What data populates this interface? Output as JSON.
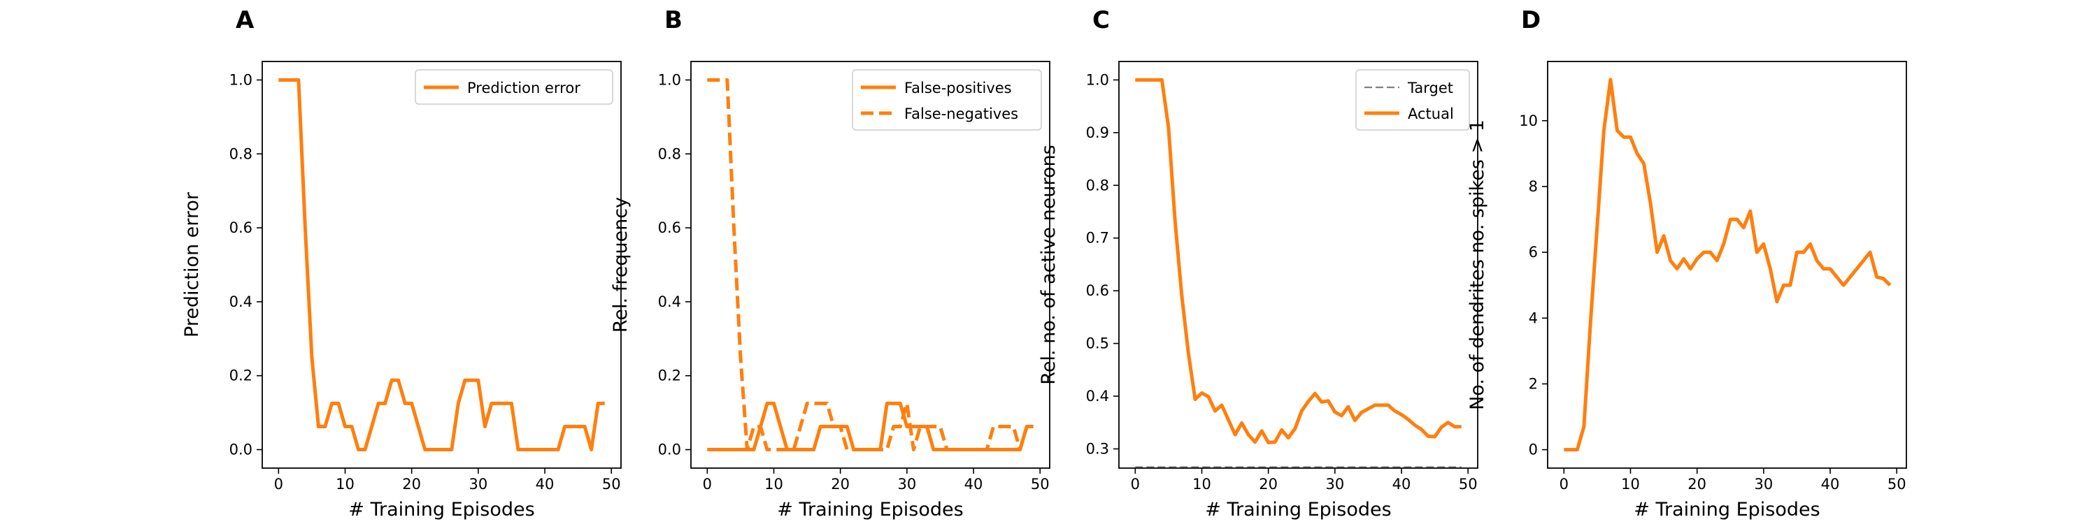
{
  "figure": {
    "background": "#ffffff",
    "series_color": "#ff7f0e",
    "target_color": "#808080"
  },
  "chart_data": [
    {
      "panel_label": "A",
      "type": "line",
      "xlabel": "# Training Episodes",
      "ylabel": "Prediction error",
      "xlim": [
        -2.45,
        51.45
      ],
      "ylim": [
        -0.05,
        1.05
      ],
      "xticks": [
        0,
        10,
        20,
        30,
        40,
        50
      ],
      "yticks": [
        0.0,
        0.2,
        0.4,
        0.6,
        0.8,
        1.0
      ],
      "ytick_labels": [
        "0.0",
        "0.2",
        "0.4",
        "0.6",
        "0.8",
        "1.0"
      ],
      "legend": {
        "position": "upper right"
      },
      "series": [
        {
          "name": "Prediction error",
          "style": "solid",
          "color": "#ff7f0e",
          "x": [
            0,
            1,
            2,
            3,
            4,
            5,
            6,
            7,
            8,
            9,
            10,
            11,
            12,
            13,
            14,
            15,
            16,
            17,
            18,
            19,
            20,
            21,
            22,
            23,
            24,
            25,
            26,
            27,
            28,
            29,
            30,
            31,
            32,
            33,
            34,
            35,
            36,
            37,
            38,
            39,
            40,
            41,
            42,
            43,
            44,
            45,
            46,
            47,
            48,
            49
          ],
          "y": [
            1.0,
            1.0,
            1.0,
            1.0,
            0.6,
            0.25,
            0.0625,
            0.0625,
            0.125,
            0.125,
            0.0625,
            0.0625,
            0.0,
            0.0,
            0.0625,
            0.125,
            0.125,
            0.1875,
            0.1875,
            0.125,
            0.125,
            0.0625,
            0.0,
            0.0,
            0.0,
            0.0,
            0.0,
            0.125,
            0.1875,
            0.1875,
            0.1875,
            0.0625,
            0.125,
            0.125,
            0.125,
            0.125,
            0.0,
            0.0,
            0.0,
            0.0,
            0.0,
            0.0,
            0.0,
            0.0625,
            0.0625,
            0.0625,
            0.0625,
            0.0,
            0.125,
            0.125
          ]
        }
      ]
    },
    {
      "panel_label": "B",
      "type": "line",
      "xlabel": "# Training Episodes",
      "ylabel": "Rel. frequency",
      "xlim": [
        -2.45,
        51.45
      ],
      "ylim": [
        -0.05,
        1.05
      ],
      "xticks": [
        0,
        10,
        20,
        30,
        40,
        50
      ],
      "yticks": [
        0.0,
        0.2,
        0.4,
        0.6,
        0.8,
        1.0
      ],
      "ytick_labels": [
        "0.0",
        "0.2",
        "0.4",
        "0.6",
        "0.8",
        "1.0"
      ],
      "legend": {
        "position": "upper right"
      },
      "series": [
        {
          "name": "False-positives",
          "style": "solid",
          "color": "#ff7f0e",
          "x": [
            0,
            1,
            2,
            3,
            4,
            5,
            6,
            7,
            8,
            9,
            10,
            11,
            12,
            13,
            14,
            15,
            16,
            17,
            18,
            19,
            20,
            21,
            22,
            23,
            24,
            25,
            26,
            27,
            28,
            29,
            30,
            31,
            32,
            33,
            34,
            35,
            36,
            37,
            38,
            39,
            40,
            41,
            42,
            43,
            44,
            45,
            46,
            47,
            48,
            49
          ],
          "y": [
            0,
            0,
            0,
            0,
            0,
            0,
            0,
            0,
            0.0625,
            0.125,
            0.125,
            0.0625,
            0,
            0,
            0,
            0,
            0,
            0.0625,
            0.0625,
            0.0625,
            0.0625,
            0.0625,
            0,
            0,
            0,
            0,
            0,
            0.125,
            0.125,
            0.125,
            0.0625,
            0.0625,
            0.0625,
            0.0625,
            0,
            0,
            0,
            0,
            0,
            0,
            0,
            0,
            0,
            0,
            0,
            0,
            0,
            0,
            0.0625,
            0.0625
          ]
        },
        {
          "name": "False-negatives",
          "style": "dashed",
          "color": "#ff7f0e",
          "x": [
            0,
            1,
            2,
            3,
            4,
            5,
            6,
            7,
            8,
            9,
            10,
            11,
            12,
            13,
            14,
            15,
            16,
            17,
            18,
            19,
            20,
            21,
            22,
            23,
            24,
            25,
            26,
            27,
            28,
            29,
            30,
            31,
            32,
            33,
            34,
            35,
            36,
            37,
            38,
            39,
            40,
            41,
            42,
            43,
            44,
            45,
            46,
            47,
            48,
            49
          ],
          "y": [
            1.0,
            1.0,
            1.0,
            1.0,
            0.6,
            0.25,
            0,
            0.0625,
            0.0625,
            0,
            0,
            0,
            0,
            0,
            0.0625,
            0.125,
            0.125,
            0.125,
            0.125,
            0.0625,
            0.0625,
            0,
            0,
            0,
            0,
            0,
            0,
            0,
            0.0625,
            0.0625,
            0.125,
            0.0,
            0.0625,
            0.0625,
            0.0625,
            0.0625,
            0,
            0,
            0,
            0,
            0,
            0,
            0,
            0.0625,
            0.0625,
            0.0625,
            0.0625,
            0,
            0.0625,
            0.0625
          ]
        }
      ]
    },
    {
      "panel_label": "C",
      "type": "line",
      "xlabel": "# Training Episodes",
      "ylabel": "Rel. no. of active neurons",
      "xlim": [
        -2.45,
        51.45
      ],
      "ylim": [
        0.2635,
        1.035
      ],
      "xticks": [
        0,
        10,
        20,
        30,
        40,
        50
      ],
      "yticks": [
        0.3,
        0.4,
        0.5,
        0.6,
        0.7,
        0.8,
        0.9,
        1.0
      ],
      "ytick_labels": [
        "0.3",
        "0.4",
        "0.5",
        "0.6",
        "0.7",
        "0.8",
        "0.9",
        "1.0"
      ],
      "legend": {
        "position": "upper right"
      },
      "series": [
        {
          "name": "Target",
          "style": "dashed",
          "color": "#808080",
          "x": [
            0,
            49
          ],
          "y": [
            0.2655,
            0.2655
          ]
        },
        {
          "name": "Actual",
          "style": "solid",
          "color": "#ff7f0e",
          "x": [
            0,
            1,
            2,
            3,
            4,
            5,
            6,
            7,
            8,
            9,
            10,
            11,
            12,
            13,
            14,
            15,
            16,
            17,
            18,
            19,
            20,
            21,
            22,
            23,
            24,
            25,
            26,
            27,
            28,
            29,
            30,
            31,
            32,
            33,
            34,
            35,
            36,
            37,
            38,
            39,
            40,
            41,
            42,
            43,
            44,
            45,
            46,
            47,
            48,
            49
          ],
          "y": [
            1.0,
            1.0,
            1.0,
            1.0,
            1.0,
            0.91,
            0.73,
            0.59,
            0.48,
            0.394,
            0.406,
            0.399,
            0.372,
            0.383,
            0.355,
            0.327,
            0.349,
            0.327,
            0.313,
            0.334,
            0.312,
            0.313,
            0.336,
            0.321,
            0.338,
            0.372,
            0.39,
            0.405,
            0.389,
            0.391,
            0.37,
            0.363,
            0.38,
            0.354,
            0.369,
            0.376,
            0.383,
            0.383,
            0.383,
            0.372,
            0.365,
            0.356,
            0.345,
            0.337,
            0.324,
            0.323,
            0.341,
            0.35,
            0.342,
            0.342
          ]
        }
      ]
    },
    {
      "panel_label": "D",
      "type": "line",
      "xlabel": "# Training Episodes",
      "ylabel": "No. of dendrites no. spikes > 1",
      "xlim": [
        -2.45,
        51.45
      ],
      "ylim": [
        -0.56,
        11.8
      ],
      "xticks": [
        0,
        10,
        20,
        30,
        40,
        50
      ],
      "yticks": [
        0,
        2,
        4,
        6,
        8,
        10
      ],
      "ytick_labels": [
        "0",
        "2",
        "4",
        "6",
        "8",
        "10"
      ],
      "legend": null,
      "series": [
        {
          "style": "solid",
          "color": "#ff7f0e",
          "x": [
            0,
            1,
            2,
            3,
            4,
            5,
            6,
            7,
            8,
            9,
            10,
            11,
            12,
            13,
            14,
            15,
            16,
            17,
            18,
            19,
            20,
            21,
            22,
            23,
            24,
            25,
            26,
            27,
            28,
            29,
            30,
            31,
            32,
            33,
            34,
            35,
            36,
            37,
            38,
            39,
            40,
            41,
            42,
            43,
            44,
            45,
            46,
            47,
            48,
            49
          ],
          "y": [
            0,
            0,
            0,
            0.7,
            3.9,
            6.8,
            9.7,
            11.25,
            9.7,
            9.5,
            9.5,
            9.0,
            8.7,
            7.5,
            6.0,
            6.5,
            5.75,
            5.5,
            5.8,
            5.5,
            5.8,
            6.0,
            6.0,
            5.75,
            6.25,
            7.0,
            7.0,
            6.75,
            7.25,
            6.0,
            6.25,
            5.5,
            4.5,
            5.0,
            5.0,
            6.0,
            6.0,
            6.25,
            5.75,
            5.5,
            5.5,
            5.25,
            5.0,
            5.25,
            5.5,
            5.75,
            6.0,
            5.25,
            5.2,
            5.0
          ]
        }
      ]
    }
  ]
}
